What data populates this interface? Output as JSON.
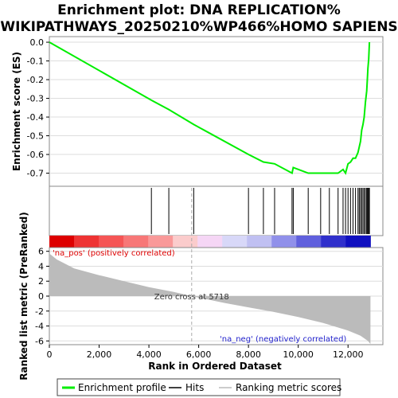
{
  "chart_data": {
    "type": "line",
    "title_line1": "Enrichment plot: DNA REPLICATION%",
    "title_line2": "WIKIPATHWAYS_20250210%WP466%HOMO SAPIENS",
    "es_ylabel": "Enrichment score (ES)",
    "metric_ylabel": "Ranked list metric (PreRanked)",
    "xlabel": "Rank in Ordered Dataset",
    "xlim": [
      0,
      13400
    ],
    "es_ylim": [
      -0.77,
      0.03
    ],
    "metric_ylim": [
      -6.5,
      6.5
    ],
    "x_ticks": [
      0,
      2000,
      4000,
      6000,
      8000,
      10000,
      12000
    ],
    "x_tick_labels": [
      "0",
      "2,000",
      "4,000",
      "6,000",
      "8,000",
      "10,000",
      "12,000"
    ],
    "es_ticks": [
      0.0,
      -0.1,
      -0.2,
      -0.3,
      -0.4,
      -0.5,
      -0.6,
      -0.7
    ],
    "es_tick_labels": [
      "0.0",
      "-0.1",
      "-0.2",
      "-0.3",
      "-0.4",
      "-0.5",
      "-0.6",
      "-0.7"
    ],
    "metric_ticks": [
      6,
      4,
      2,
      0,
      -2,
      -4,
      -6
    ],
    "metric_tick_labels": [
      "6",
      "4",
      "2",
      "0",
      "-2",
      "-4",
      "-6"
    ],
    "total_genes": 12900,
    "zero_cross": 5718,
    "zero_cross_label": "Zero cross at 5718",
    "pos_label": "'na_pos' (positively correlated)",
    "neg_label": "'na_neg' (negatively correlated)",
    "hits": [
      4100,
      4800,
      5800,
      8000,
      8600,
      9050,
      9750,
      9800,
      10400,
      10900,
      11250,
      11600,
      11800,
      11900,
      12000,
      12100,
      12200,
      12300,
      12400,
      12450,
      12500,
      12550,
      12600,
      12650,
      12700,
      12750,
      12780,
      12800,
      12830,
      12860
    ],
    "es_curve": {
      "x": [
        0,
        4100,
        4800,
        5800,
        8000,
        8600,
        9050,
        9750,
        9800,
        10400,
        10900,
        11250,
        11600,
        11800,
        11900,
        12000,
        12100,
        12200,
        12300,
        12400,
        12450,
        12500,
        12550,
        12600,
        12650,
        12700,
        12750,
        12780,
        12800,
        12830,
        12860
      ],
      "y": [
        0.0,
        -0.31,
        -0.36,
        -0.44,
        -0.6,
        -0.64,
        -0.65,
        -0.7,
        -0.67,
        -0.7,
        -0.7,
        -0.7,
        -0.7,
        -0.68,
        -0.7,
        -0.65,
        -0.64,
        -0.62,
        -0.62,
        -0.59,
        -0.56,
        -0.53,
        -0.47,
        -0.44,
        -0.4,
        -0.32,
        -0.26,
        -0.19,
        -0.14,
        -0.09,
        0.0
      ]
    },
    "metric_profile": {
      "x": [
        0,
        300,
        1000,
        2000,
        3000,
        4000,
        5000,
        5718,
        7000,
        8000,
        9000,
        10000,
        11000,
        12000,
        12500,
        12800,
        12900
      ],
      "y": [
        5.7,
        4.9,
        3.7,
        2.8,
        2.0,
        1.2,
        0.55,
        0.0,
        -0.9,
        -1.5,
        -2.1,
        -2.8,
        -3.6,
        -4.6,
        -5.3,
        -6.0,
        -6.4
      ]
    },
    "heat_colors": [
      "#dd0000",
      "#ee3333",
      "#f55555",
      "#f77777",
      "#f99999",
      "#fbcccc",
      "#f5d6f5",
      "#d8d8f8",
      "#c0c0f2",
      "#9090ea",
      "#6060dd",
      "#3030cc",
      "#1010c0"
    ],
    "curve_color": "#00ee00",
    "legend": [
      {
        "label": "Enrichment profile",
        "color": "#00ee00"
      },
      {
        "label": "Hits",
        "color": "#000000"
      },
      {
        "label": "Ranking metric scores",
        "color": "#bbbbbb"
      }
    ]
  }
}
